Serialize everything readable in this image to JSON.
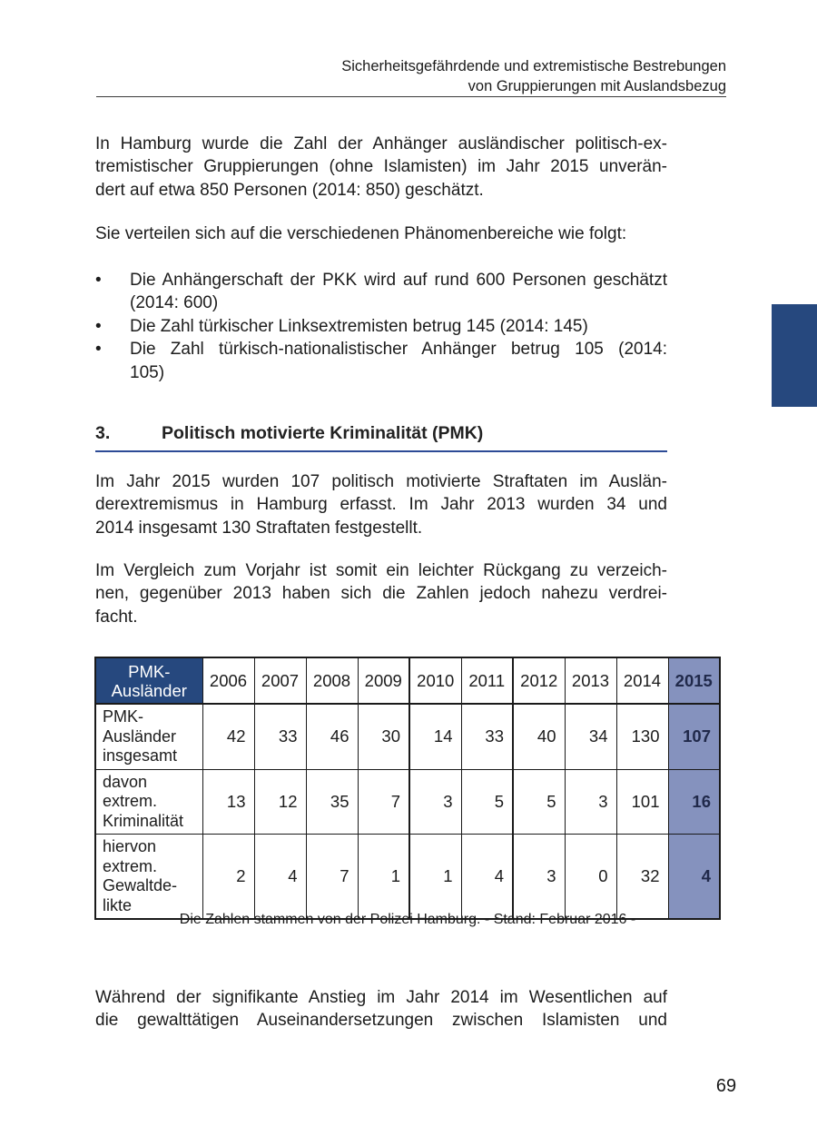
{
  "colors": {
    "navy": "#26487E",
    "highlight_column": "#8592BE",
    "section_underline": "#2D4B96",
    "text": "#1C1C1C"
  },
  "header": {
    "line1": "Sicherheitsgefährdende und extremistische Bestrebungen",
    "line2": "von Gruppierungen mit Auslandsbezug"
  },
  "intro": {
    "p1": [
      "In Hamburg wurde die Zahl der Anhänger ausländischer politisch-ex-",
      "tremistischer Gruppierungen (ohne Islamisten) im Jahr 2015 unverän-",
      "dert auf etwa 850 Personen (2014: 850) geschätzt."
    ],
    "p2": "Sie verteilen sich auf die verschiedenen Phänomenbereiche wie folgt:",
    "bullet_glyph": "•",
    "bullets": [
      {
        "lines": [
          "Die Anhängerschaft der PKK wird auf rund 600 Personen geschätzt",
          "(2014: 600)"
        ]
      },
      {
        "lines": [
          "Die Zahl türkischer Linksextremisten betrug 145 (2014: 145)"
        ]
      },
      {
        "lines": [
          "Die Zahl türkisch-nationalistischer Anhänger betrug 105 (2014:",
          "105)"
        ]
      }
    ]
  },
  "section": {
    "number": "3.",
    "title": "Politisch motivierte Kriminalität (PMK)"
  },
  "body": {
    "p3": [
      "Im Jahr 2015 wurden 107 politisch motivierte Straftaten im Auslän-",
      "derextremismus in Hamburg erfasst. Im Jahr 2013 wurden 34 und",
      "2014 insgesamt 130 Straftaten festgestellt."
    ],
    "p4": [
      "Im Vergleich zum Vorjahr ist somit ein leichter Rückgang zu verzeich-",
      "nen, gegenüber 2013 haben sich die Zahlen jedoch nahezu verdrei-",
      "facht."
    ],
    "p5": [
      "Während der signifikante Anstieg im Jahr 2014 im Wesentlichen auf",
      "die gewalttätigen Auseinandersetzungen zwischen Islamisten und"
    ]
  },
  "table": {
    "header": {
      "label_lines": [
        "PMK-",
        "Ausländer"
      ],
      "years": [
        "2006",
        "2007",
        "2008",
        "2009",
        "2010",
        "2011",
        "2012",
        "2013",
        "2014"
      ],
      "highlight_year": "2015"
    },
    "rows": [
      {
        "label_lines": [
          "PMK-",
          "Ausländer",
          "insgesamt"
        ],
        "values": [
          "42",
          "33",
          "46",
          "30",
          "14",
          "33",
          "40",
          "34",
          "130"
        ],
        "highlight": "107"
      },
      {
        "label_lines": [
          "davon",
          "extrem.",
          "Kriminalität"
        ],
        "values": [
          "13",
          "12",
          "35",
          "7",
          "3",
          "5",
          "5",
          "3",
          "101"
        ],
        "highlight": "16"
      },
      {
        "label_lines": [
          "hiervon",
          "extrem.",
          "Gewaltde-",
          "likte"
        ],
        "values": [
          "2",
          "4",
          "7",
          "1",
          "1",
          "4",
          "3",
          "0",
          "32"
        ],
        "highlight": "4"
      }
    ]
  },
  "caption": "Die Zahlen stammen von der Polizei Hamburg. - Stand: Februar 2016 -",
  "page_number": "69"
}
